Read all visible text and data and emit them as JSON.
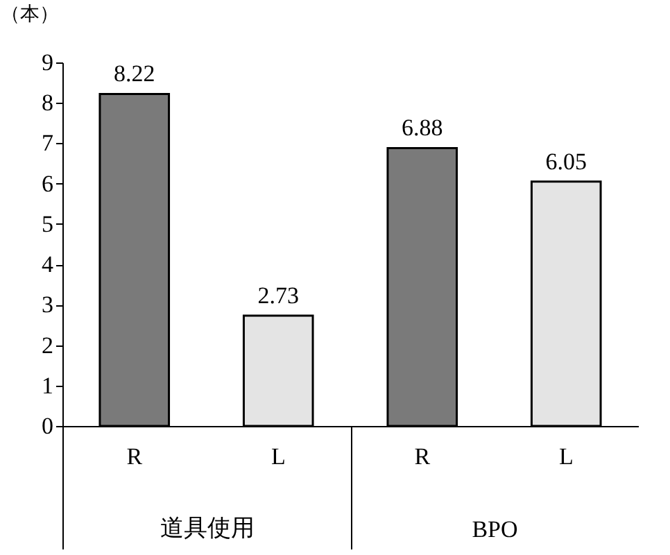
{
  "chart_data": {
    "type": "bar",
    "ylabel": "（本）",
    "categories": [
      "R",
      "L",
      "R",
      "L"
    ],
    "values": [
      8.22,
      2.73,
      6.88,
      6.05
    ],
    "colors": [
      "#7a7a7a",
      "#e4e4e4",
      "#7a7a7a",
      "#e4e4e4"
    ],
    "ylim": [
      0,
      9
    ],
    "yticks": [
      0,
      1,
      2,
      3,
      4,
      5,
      6,
      7,
      8,
      9
    ],
    "data_labels": true,
    "annotations": [
      "道具使用",
      "BPO"
    ]
  }
}
